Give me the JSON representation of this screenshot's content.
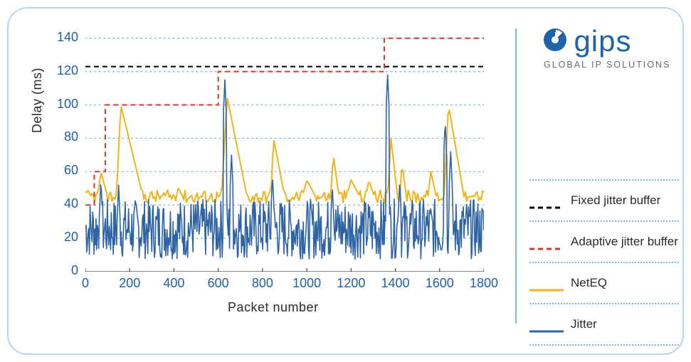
{
  "brand": {
    "word": "gips",
    "tagline": "GLOBAL IP SOLUTIONS",
    "color": "#1f63a8",
    "tagline_color": "#6a6a6a"
  },
  "chart": {
    "type": "line",
    "ylabel": "Delay (ms)",
    "xlabel": "Packet number",
    "label_fontsize": 18,
    "tick_fontsize": 18,
    "tick_color": "#1e5fa8",
    "background_color": "#ffffff",
    "frame_border_color": "#b7d6e8",
    "separator_color": "#7fb9e0",
    "grid_color": "#7fb9e0",
    "grid_style": "dotted",
    "xlim": [
      0,
      1800
    ],
    "ylim": [
      0,
      145
    ],
    "yticks": [
      0,
      20,
      40,
      60,
      80,
      100,
      120,
      140
    ],
    "xticks": [
      0,
      200,
      400,
      600,
      800,
      1000,
      1200,
      1400,
      1600,
      1800
    ],
    "series": {
      "fixed": {
        "label": "Fixed jitter buffer",
        "color": "#000000",
        "style": "dashed",
        "width": 2,
        "value": 123,
        "type": "hline"
      },
      "adaptive": {
        "label": "Adaptive jitter buffer",
        "color": "#d43c2a",
        "style": "dashed",
        "width": 2,
        "type": "step",
        "points": [
          [
            0,
            40
          ],
          [
            40,
            40
          ],
          [
            40,
            60
          ],
          [
            90,
            60
          ],
          [
            90,
            100
          ],
          [
            600,
            100
          ],
          [
            600,
            120
          ],
          [
            1350,
            120
          ],
          [
            1350,
            140
          ],
          [
            1800,
            140
          ]
        ]
      },
      "neteq": {
        "label": "NetEQ",
        "color": "#f0b31b",
        "style": "solid",
        "width": 2,
        "type": "line",
        "base": 45,
        "noise_amp": 8,
        "bumps": [
          {
            "x": 70,
            "h": 60,
            "w": 30
          },
          {
            "x": 160,
            "h": 100,
            "w": 40,
            "decay": 100
          },
          {
            "x": 420,
            "h": 50,
            "w": 20
          },
          {
            "x": 640,
            "h": 105,
            "w": 50,
            "decay": 90
          },
          {
            "x": 850,
            "h": 80,
            "w": 25,
            "decay": 50
          },
          {
            "x": 1000,
            "h": 55,
            "w": 40
          },
          {
            "x": 1120,
            "h": 70,
            "w": 25
          },
          {
            "x": 1200,
            "h": 55,
            "w": 40
          },
          {
            "x": 1280,
            "h": 55,
            "w": 25
          },
          {
            "x": 1380,
            "h": 80,
            "w": 30
          },
          {
            "x": 1430,
            "h": 65,
            "w": 20
          },
          {
            "x": 1560,
            "h": 60,
            "w": 25
          },
          {
            "x": 1640,
            "h": 100,
            "w": 40,
            "decay": 70
          },
          {
            "x": 1740,
            "h": 45,
            "w": 30
          }
        ]
      },
      "jitter": {
        "label": "Jitter",
        "color": "#2e63a4",
        "style": "solid",
        "width": 1.6,
        "type": "noise",
        "base": 22,
        "noise_amp": 18,
        "spikes": [
          {
            "x": 70,
            "h": 55
          },
          {
            "x": 150,
            "h": 52
          },
          {
            "x": 630,
            "h": 115
          },
          {
            "x": 660,
            "h": 70
          },
          {
            "x": 845,
            "h": 58
          },
          {
            "x": 1115,
            "h": 52
          },
          {
            "x": 1365,
            "h": 118
          },
          {
            "x": 1420,
            "h": 55
          },
          {
            "x": 1625,
            "h": 90
          },
          {
            "x": 1650,
            "h": 72
          }
        ]
      }
    }
  },
  "legend": {
    "items": [
      {
        "key": "fixed",
        "label": "Fixed jitter buffer"
      },
      {
        "key": "adaptive",
        "label": "Adaptive jitter buffer"
      },
      {
        "key": "neteq",
        "label": "NetEQ"
      },
      {
        "key": "jitter",
        "label": "Jitter"
      }
    ],
    "separator_color": "#7fb9e0"
  }
}
